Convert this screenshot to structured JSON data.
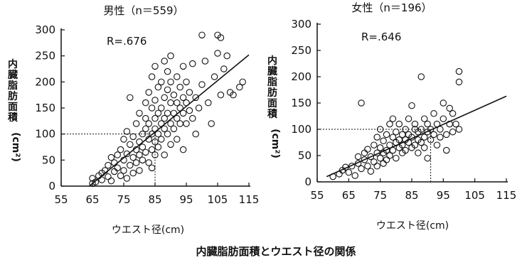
{
  "caption": "内臓脂肪面積とウエスト径の関係",
  "chart_data": [
    {
      "type": "scatter",
      "title": "男性（n＝559）",
      "xlabel": "ウエスト径(cm)",
      "ylabel": "内臓脂肪面積(cm²)",
      "annotation": "R=.676",
      "xlim": [
        55,
        115
      ],
      "ylim": [
        0,
        300
      ],
      "xticks": [
        "55",
        "65",
        "75",
        "85",
        "95",
        "105",
        "115"
      ],
      "yticks": [
        "0",
        "50",
        "100",
        "150",
        "200",
        "250",
        "300"
      ],
      "grid": false,
      "reference_y": 100,
      "reference_x": 85,
      "regression": {
        "x": [
          64,
          115
        ],
        "y": [
          0,
          252
        ]
      },
      "points": [
        [
          65,
          5
        ],
        [
          65,
          15
        ],
        [
          66,
          8
        ],
        [
          67,
          20
        ],
        [
          68,
          12
        ],
        [
          68,
          25
        ],
        [
          69,
          30
        ],
        [
          70,
          18
        ],
        [
          70,
          40
        ],
        [
          71,
          10
        ],
        [
          71,
          55
        ],
        [
          72,
          28
        ],
        [
          72,
          45
        ],
        [
          73,
          60
        ],
        [
          73,
          35
        ],
        [
          74,
          20
        ],
        [
          74,
          70
        ],
        [
          75,
          50
        ],
        [
          75,
          90
        ],
        [
          75,
          30
        ],
        [
          76,
          62
        ],
        [
          76,
          15
        ],
        [
          76,
          105
        ],
        [
          77,
          40
        ],
        [
          77,
          80
        ],
        [
          77,
          170
        ],
        [
          78,
          55
        ],
        [
          78,
          95
        ],
        [
          78,
          25
        ],
        [
          79,
          70
        ],
        [
          79,
          120
        ],
        [
          79,
          45
        ],
        [
          80,
          85
        ],
        [
          80,
          60
        ],
        [
          80,
          140
        ],
        [
          80,
          30
        ],
        [
          81,
          100
        ],
        [
          81,
          75
        ],
        [
          81,
          50
        ],
        [
          82,
          110
        ],
        [
          82,
          130
        ],
        [
          82,
          65
        ],
        [
          82,
          160
        ],
        [
          83,
          90
        ],
        [
          83,
          120
        ],
        [
          83,
          45
        ],
        [
          83,
          180
        ],
        [
          84,
          100
        ],
        [
          84,
          150
        ],
        [
          84,
          70
        ],
        [
          84,
          210
        ],
        [
          84,
          35
        ],
        [
          85,
          110
        ],
        [
          85,
          130
        ],
        [
          85,
          85
        ],
        [
          85,
          165
        ],
        [
          85,
          230
        ],
        [
          85,
          60
        ],
        [
          86,
          140
        ],
        [
          86,
          100
        ],
        [
          86,
          190
        ],
        [
          86,
          75
        ],
        [
          87,
          120
        ],
        [
          87,
          150
        ],
        [
          87,
          200
        ],
        [
          87,
          90
        ],
        [
          88,
          110
        ],
        [
          88,
          170
        ],
        [
          88,
          130
        ],
        [
          88,
          240
        ],
        [
          88,
          60
        ],
        [
          89,
          140
        ],
        [
          89,
          100
        ],
        [
          89,
          185
        ],
        [
          89,
          220
        ],
        [
          90,
          160
        ],
        [
          90,
          120
        ],
        [
          90,
          200
        ],
        [
          90,
          80
        ],
        [
          90,
          250
        ],
        [
          91,
          140
        ],
        [
          91,
          175
        ],
        [
          91,
          110
        ],
        [
          92,
          160
        ],
        [
          92,
          130
        ],
        [
          92,
          210
        ],
        [
          92,
          90
        ],
        [
          93,
          150
        ],
        [
          93,
          190
        ],
        [
          93,
          120
        ],
        [
          94,
          170
        ],
        [
          94,
          140
        ],
        [
          94,
          230
        ],
        [
          94,
          70
        ],
        [
          95,
          160
        ],
        [
          95,
          200
        ],
        [
          95,
          120
        ],
        [
          96,
          180
        ],
        [
          96,
          145
        ],
        [
          97,
          235
        ],
        [
          97,
          130
        ],
        [
          98,
          170
        ],
        [
          98,
          100
        ],
        [
          99,
          150
        ],
        [
          100,
          290
        ],
        [
          100,
          195
        ],
        [
          101,
          240
        ],
        [
          102,
          160
        ],
        [
          103,
          120
        ],
        [
          104,
          210
        ],
        [
          105,
          290
        ],
        [
          105,
          255
        ],
        [
          106,
          175
        ],
        [
          106,
          285
        ],
        [
          107,
          225
        ],
        [
          108,
          250
        ],
        [
          109,
          180
        ],
        [
          110,
          175
        ],
        [
          112,
          190
        ],
        [
          113,
          200
        ]
      ]
    },
    {
      "type": "scatter",
      "title": "女性（n＝196）",
      "xlabel": "ウエスト径(cm)",
      "ylabel": "内臓脂肪面積(cm²)",
      "annotation": "R=.646",
      "xlim": [
        55,
        115
      ],
      "ylim": [
        0,
        300
      ],
      "xticks": [
        "55",
        "65",
        "75",
        "85",
        "95",
        "105",
        "115"
      ],
      "yticks": [
        "0",
        "50",
        "100",
        "150",
        "200",
        "250",
        "300"
      ],
      "grid": false,
      "reference_y": 100,
      "reference_x": 91,
      "regression": {
        "x": [
          58,
          115
        ],
        "y": [
          10,
          163
        ]
      },
      "points": [
        [
          60,
          10
        ],
        [
          62,
          15
        ],
        [
          63,
          22
        ],
        [
          64,
          28
        ],
        [
          65,
          18
        ],
        [
          66,
          30
        ],
        [
          67,
          12
        ],
        [
          68,
          35
        ],
        [
          68,
          48
        ],
        [
          69,
          25
        ],
        [
          69,
          150
        ],
        [
          70,
          42
        ],
        [
          70,
          55
        ],
        [
          71,
          30
        ],
        [
          71,
          62
        ],
        [
          72,
          48
        ],
        [
          72,
          20
        ],
        [
          73,
          70
        ],
        [
          73,
          38
        ],
        [
          74,
          55
        ],
        [
          74,
          85
        ],
        [
          74,
          30
        ],
        [
          75,
          65
        ],
        [
          75,
          45
        ],
        [
          75,
          100
        ],
        [
          76,
          55
        ],
        [
          76,
          78
        ],
        [
          76,
          35
        ],
        [
          77,
          90
        ],
        [
          77,
          60
        ],
        [
          77,
          42
        ],
        [
          78,
          110
        ],
        [
          78,
          70
        ],
        [
          78,
          50
        ],
        [
          79,
          85
        ],
        [
          79,
          60
        ],
        [
          79,
          120
        ],
        [
          80,
          75
        ],
        [
          80,
          95
        ],
        [
          80,
          45
        ],
        [
          81,
          65
        ],
        [
          81,
          110
        ],
        [
          81,
          80
        ],
        [
          82,
          90
        ],
        [
          82,
          55
        ],
        [
          82,
          70
        ],
        [
          83,
          100
        ],
        [
          83,
          80
        ],
        [
          83,
          60
        ],
        [
          84,
          120
        ],
        [
          84,
          75
        ],
        [
          84,
          90
        ],
        [
          85,
          145
        ],
        [
          85,
          85
        ],
        [
          85,
          65
        ],
        [
          86,
          100
        ],
        [
          86,
          70
        ],
        [
          86,
          110
        ],
        [
          87,
          80
        ],
        [
          87,
          95
        ],
        [
          87,
          55
        ],
        [
          88,
          100
        ],
        [
          88,
          200
        ],
        [
          88,
          75
        ],
        [
          89,
          85
        ],
        [
          89,
          120
        ],
        [
          89,
          65
        ],
        [
          90,
          95
        ],
        [
          90,
          110
        ],
        [
          90,
          45
        ],
        [
          91,
          100
        ],
        [
          91,
          80
        ],
        [
          92,
          90
        ],
        [
          92,
          130
        ],
        [
          93,
          70
        ],
        [
          93,
          110
        ],
        [
          94,
          100
        ],
        [
          94,
          85
        ],
        [
          95,
          150
        ],
        [
          95,
          120
        ],
        [
          96,
          60
        ],
        [
          96,
          90
        ],
        [
          97,
          110
        ],
        [
          97,
          140
        ],
        [
          98,
          95
        ],
        [
          98,
          130
        ],
        [
          99,
          110
        ],
        [
          100,
          210
        ],
        [
          100,
          190
        ],
        [
          100,
          100
        ]
      ]
    }
  ]
}
